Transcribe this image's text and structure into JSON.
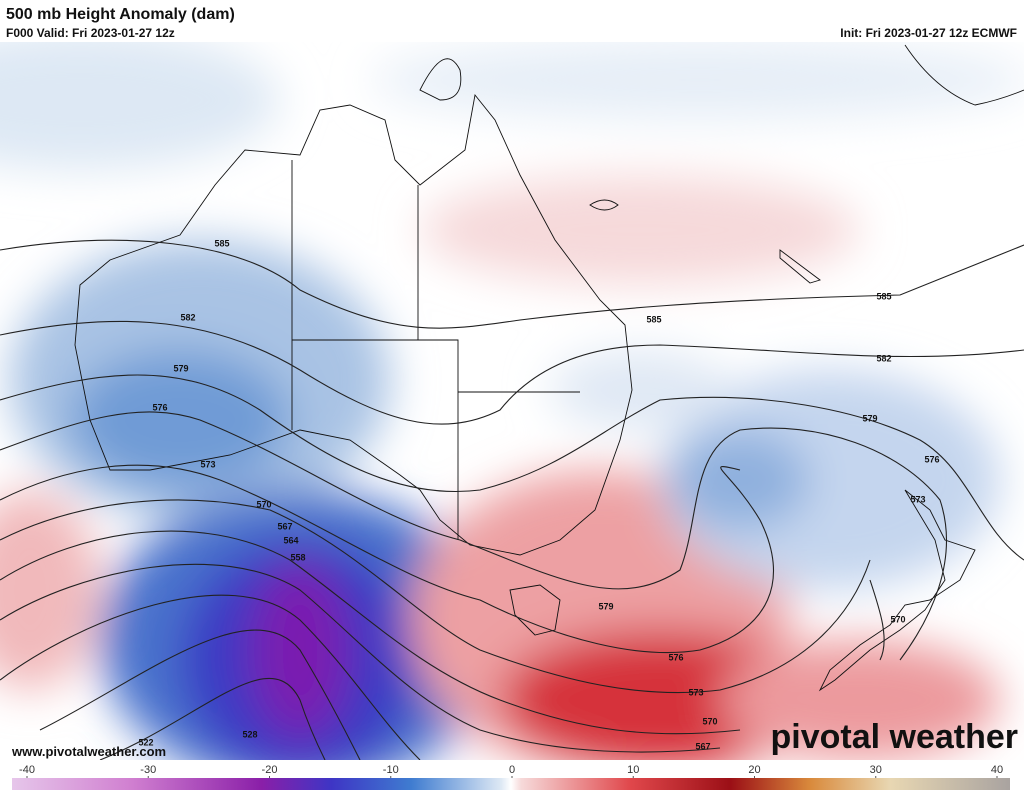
{
  "header": {
    "title": "500 mb Height Anomaly (dam)",
    "valid": "F000 Valid: Fri 2023-01-27 12z",
    "init": "Init: Fri 2023-01-27 12z ECMWF"
  },
  "map": {
    "contour_labels": [
      585,
      585,
      585,
      582,
      582,
      579,
      579,
      576,
      576,
      573,
      573,
      570,
      567,
      564,
      558,
      579,
      576,
      573,
      570,
      567,
      570,
      528,
      522
    ],
    "url": "www.pivotalweather.com",
    "logo": "pivotal weather"
  },
  "colorbar": {
    "ticks": [
      -40,
      -30,
      -20,
      -10,
      0,
      10,
      20,
      30,
      40
    ]
  }
}
